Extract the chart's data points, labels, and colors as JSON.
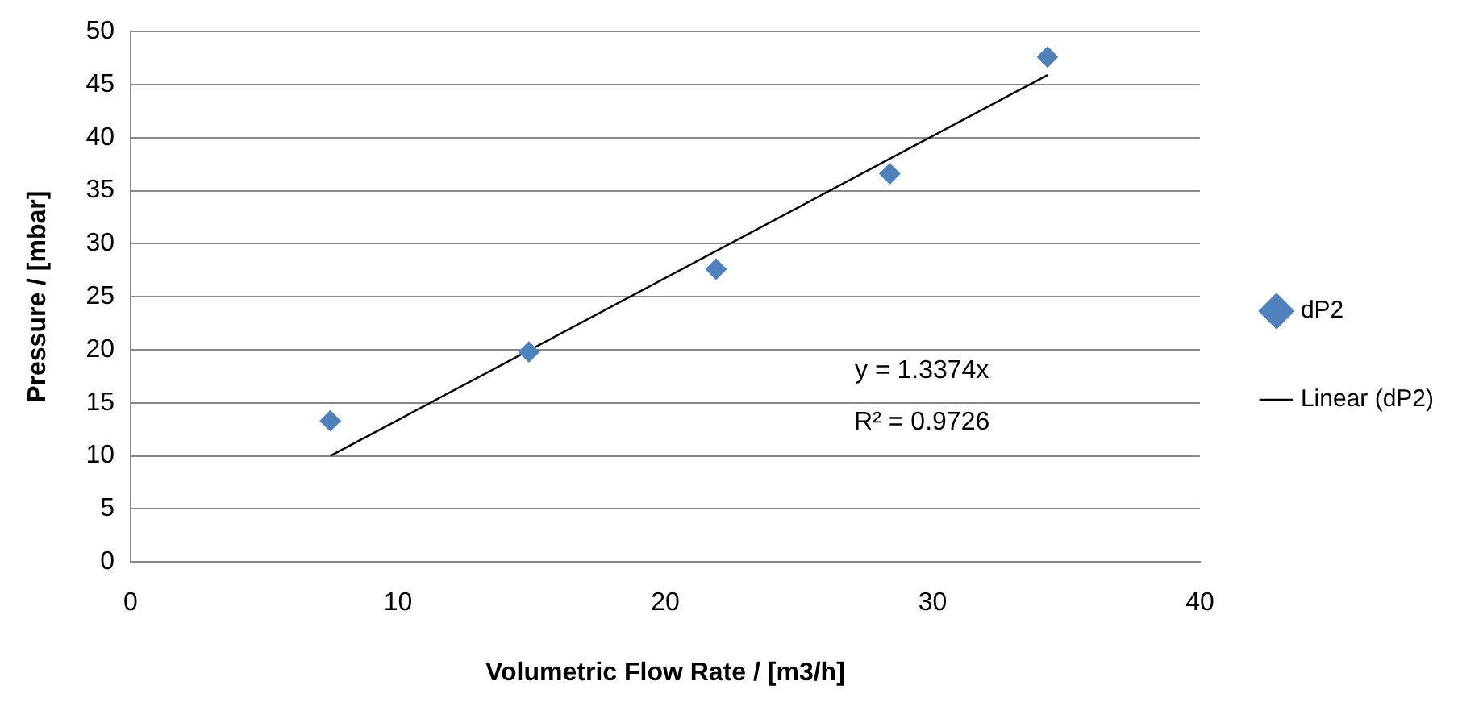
{
  "chart_data": {
    "type": "scatter",
    "xlabel": "Volumetric Flow Rate / [m3/h]",
    "ylabel": "Pressure / [mbar]",
    "xlim": [
      0,
      40
    ],
    "xticks": [
      0,
      10,
      20,
      30,
      40
    ],
    "ylim": [
      0,
      50
    ],
    "yticks": [
      0,
      5,
      10,
      15,
      20,
      25,
      30,
      35,
      40,
      45,
      50
    ],
    "grid": "y",
    "legend": "right",
    "marker": "diamond",
    "series": [
      {
        "name": "dP2",
        "color": "#4f81bd",
        "x": [
          7.47,
          14.9,
          21.9,
          28.4,
          34.3
        ],
        "values": [
          13.3,
          19.8,
          27.6,
          36.6,
          47.6
        ]
      },
      {
        "name": "Linear (dP2)",
        "type": "line",
        "color": "#000000",
        "marker": "none",
        "x": [
          7.47,
          34.3
        ],
        "values": [
          10.0,
          45.9
        ]
      }
    ],
    "annotations": [
      "y = 1.3374x",
      "R² = 0.9726"
    ]
  }
}
